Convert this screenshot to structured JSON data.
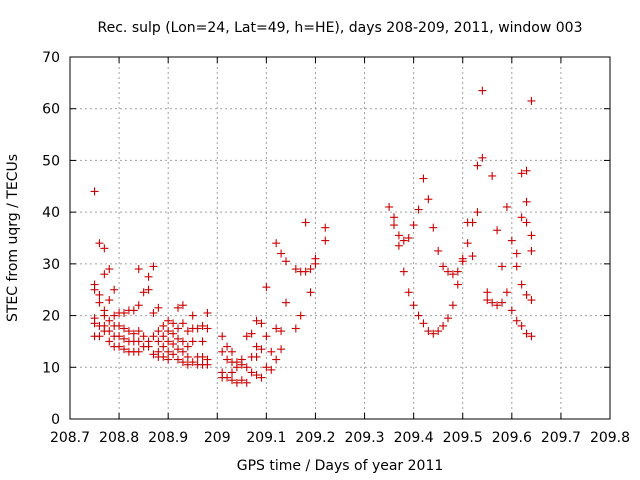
{
  "chart_data": {
    "type": "scatter",
    "title": "Rec. sulp (Lon=24, Lat=49, h=HE), days 208-209, 2011, window 003",
    "xlabel": "GPS time / Days of year 2011",
    "ylabel": "STEC from uqrg / TECUs",
    "xlim": [
      208.7,
      209.8
    ],
    "ylim": [
      0,
      70
    ],
    "xticks": [
      "208.7",
      "208.8",
      "208.9",
      "209",
      "209.1",
      "209.2",
      "209.3",
      "209.4",
      "209.5",
      "209.6",
      "209.7",
      "209.8"
    ],
    "xtick_values": [
      208.7,
      208.8,
      208.9,
      209.0,
      209.1,
      209.2,
      209.3,
      209.4,
      209.5,
      209.6,
      209.7,
      209.8
    ],
    "yticks": [
      "0",
      "10",
      "20",
      "30",
      "40",
      "50",
      "60",
      "70"
    ],
    "ytick_values": [
      0,
      10,
      20,
      30,
      40,
      50,
      60,
      70
    ],
    "grid": true,
    "marker": "+",
    "marker_color": "#cc0000",
    "series": [
      {
        "points": [
          [
            208.75,
            44.0
          ],
          [
            208.75,
            26.0
          ],
          [
            208.75,
            25.0
          ],
          [
            208.75,
            19.5
          ],
          [
            208.75,
            18.5
          ],
          [
            208.75,
            16.0
          ],
          [
            208.76,
            34.0
          ],
          [
            208.76,
            24.0
          ],
          [
            208.76,
            22.5
          ],
          [
            208.76,
            18.0
          ],
          [
            208.76,
            16.0
          ],
          [
            208.77,
            33.0
          ],
          [
            208.77,
            28.0
          ],
          [
            208.77,
            21.0
          ],
          [
            208.77,
            20.0
          ],
          [
            208.77,
            18.0
          ],
          [
            208.77,
            17.0
          ],
          [
            208.78,
            29.0
          ],
          [
            208.78,
            23.0
          ],
          [
            208.78,
            19.0
          ],
          [
            208.78,
            17.0
          ],
          [
            208.78,
            15.0
          ],
          [
            208.79,
            25.0
          ],
          [
            208.79,
            20.0
          ],
          [
            208.79,
            18.0
          ],
          [
            208.79,
            16.0
          ],
          [
            208.79,
            14.0
          ],
          [
            208.8,
            20.5
          ],
          [
            208.8,
            18.0
          ],
          [
            208.8,
            16.0
          ],
          [
            208.8,
            14.0
          ],
          [
            208.81,
            20.5
          ],
          [
            208.81,
            17.5
          ],
          [
            208.81,
            15.5
          ],
          [
            208.81,
            13.5
          ],
          [
            208.82,
            21.0
          ],
          [
            208.82,
            17.0
          ],
          [
            208.82,
            15.0
          ],
          [
            208.82,
            13.0
          ],
          [
            208.83,
            21.0
          ],
          [
            208.83,
            16.5
          ],
          [
            208.83,
            15.0
          ],
          [
            208.83,
            13.0
          ],
          [
            208.84,
            29.0
          ],
          [
            208.84,
            22.0
          ],
          [
            208.84,
            17.0
          ],
          [
            208.84,
            15.0
          ],
          [
            208.84,
            13.0
          ],
          [
            208.85,
            24.5
          ],
          [
            208.85,
            16.0
          ],
          [
            208.85,
            14.0
          ],
          [
            208.86,
            27.5
          ],
          [
            208.86,
            25.0
          ],
          [
            208.86,
            15.0
          ],
          [
            208.86,
            14.0
          ],
          [
            208.87,
            29.5
          ],
          [
            208.87,
            20.5
          ],
          [
            208.87,
            16.0
          ],
          [
            208.87,
            12.5
          ],
          [
            208.88,
            21.5
          ],
          [
            208.88,
            17.0
          ],
          [
            208.88,
            15.0
          ],
          [
            208.88,
            13.0
          ],
          [
            208.88,
            12.0
          ],
          [
            208.89,
            18.0
          ],
          [
            208.89,
            16.0
          ],
          [
            208.89,
            14.0
          ],
          [
            208.89,
            12.0
          ],
          [
            208.9,
            19.0
          ],
          [
            208.9,
            17.0
          ],
          [
            208.9,
            15.0
          ],
          [
            208.9,
            13.0
          ],
          [
            208.9,
            11.5
          ],
          [
            208.91,
            18.5
          ],
          [
            208.91,
            16.5
          ],
          [
            208.91,
            14.5
          ],
          [
            208.91,
            12.5
          ],
          [
            208.92,
            21.5
          ],
          [
            208.92,
            17.5
          ],
          [
            208.92,
            15.5
          ],
          [
            208.92,
            13.5
          ],
          [
            208.92,
            11.5
          ],
          [
            208.93,
            22.0
          ],
          [
            208.93,
            18.5
          ],
          [
            208.93,
            15.0
          ],
          [
            208.93,
            13.0
          ],
          [
            208.93,
            11.0
          ],
          [
            208.94,
            17.0
          ],
          [
            208.94,
            14.0
          ],
          [
            208.94,
            12.0
          ],
          [
            208.94,
            10.5
          ],
          [
            208.95,
            20.0
          ],
          [
            208.95,
            17.5
          ],
          [
            208.95,
            15.0
          ],
          [
            208.95,
            11.0
          ],
          [
            208.96,
            17.5
          ],
          [
            208.96,
            12.0
          ],
          [
            208.96,
            10.5
          ],
          [
            208.97,
            18.0
          ],
          [
            208.97,
            15.0
          ],
          [
            208.97,
            12.0
          ],
          [
            208.97,
            10.5
          ],
          [
            208.98,
            20.5
          ],
          [
            208.98,
            17.5
          ],
          [
            208.98,
            11.5
          ],
          [
            208.98,
            10.5
          ],
          [
            209.01,
            16.0
          ],
          [
            209.01,
            13.0
          ],
          [
            209.01,
            9.0
          ],
          [
            209.01,
            8.0
          ],
          [
            209.02,
            14.0
          ],
          [
            209.02,
            11.5
          ],
          [
            209.02,
            8.0
          ],
          [
            209.03,
            13.0
          ],
          [
            209.03,
            11.0
          ],
          [
            209.03,
            9.0
          ],
          [
            209.03,
            7.5
          ],
          [
            209.04,
            11.0
          ],
          [
            209.04,
            10.0
          ],
          [
            209.04,
            7.0
          ],
          [
            209.05,
            11.5
          ],
          [
            209.05,
            10.5
          ],
          [
            209.05,
            7.5
          ],
          [
            209.06,
            16.0
          ],
          [
            209.06,
            10.0
          ],
          [
            209.06,
            7.0
          ],
          [
            209.07,
            16.5
          ],
          [
            209.07,
            12.0
          ],
          [
            209.07,
            9.0
          ],
          [
            209.08,
            19.0
          ],
          [
            209.08,
            14.0
          ],
          [
            209.08,
            12.0
          ],
          [
            209.08,
            8.5
          ],
          [
            209.09,
            18.5
          ],
          [
            209.09,
            13.5
          ],
          [
            209.09,
            8.0
          ],
          [
            209.1,
            25.5
          ],
          [
            209.1,
            16.0
          ],
          [
            209.1,
            10.0
          ],
          [
            209.11,
            13.0
          ],
          [
            209.11,
            9.5
          ],
          [
            209.12,
            34.0
          ],
          [
            209.12,
            17.5
          ],
          [
            209.12,
            11.5
          ],
          [
            209.13,
            32.0
          ],
          [
            209.13,
            17.0
          ],
          [
            209.13,
            13.5
          ],
          [
            209.14,
            30.5
          ],
          [
            209.14,
            22.5
          ],
          [
            209.16,
            29.0
          ],
          [
            209.16,
            17.5
          ],
          [
            209.17,
            28.5
          ],
          [
            209.17,
            20.0
          ],
          [
            209.18,
            38.0
          ],
          [
            209.18,
            28.5
          ],
          [
            209.19,
            29.0
          ],
          [
            209.19,
            24.5
          ],
          [
            209.2,
            31.0
          ],
          [
            209.2,
            30.0
          ],
          [
            209.22,
            37.0
          ],
          [
            209.22,
            34.5
          ],
          [
            209.35,
            41.0
          ],
          [
            209.36,
            39.0
          ],
          [
            209.36,
            37.5
          ],
          [
            209.37,
            35.5
          ],
          [
            209.37,
            33.5
          ],
          [
            209.38,
            34.5
          ],
          [
            209.38,
            28.5
          ],
          [
            209.39,
            35.0
          ],
          [
            209.39,
            24.5
          ],
          [
            209.4,
            37.5
          ],
          [
            209.4,
            22.0
          ],
          [
            209.41,
            40.5
          ],
          [
            209.41,
            20.0
          ],
          [
            209.42,
            46.5
          ],
          [
            209.42,
            18.5
          ],
          [
            209.43,
            42.5
          ],
          [
            209.43,
            17.0
          ],
          [
            209.44,
            37.0
          ],
          [
            209.44,
            16.5
          ],
          [
            209.45,
            32.5
          ],
          [
            209.45,
            17.0
          ],
          [
            209.46,
            29.5
          ],
          [
            209.46,
            18.0
          ],
          [
            209.47,
            28.5
          ],
          [
            209.47,
            19.5
          ],
          [
            209.48,
            28.0
          ],
          [
            209.48,
            22.0
          ],
          [
            209.49,
            28.5
          ],
          [
            209.49,
            26.0
          ],
          [
            209.5,
            30.5
          ],
          [
            209.5,
            31.0
          ],
          [
            209.51,
            38.0
          ],
          [
            209.51,
            34.0
          ],
          [
            209.52,
            38.0
          ],
          [
            209.52,
            31.5
          ],
          [
            209.53,
            40.0
          ],
          [
            209.53,
            49.0
          ],
          [
            209.54,
            50.5
          ],
          [
            209.54,
            63.5
          ],
          [
            209.55,
            24.5
          ],
          [
            209.55,
            23.0
          ],
          [
            209.56,
            47.0
          ],
          [
            209.56,
            22.5
          ],
          [
            209.57,
            36.5
          ],
          [
            209.57,
            22.0
          ],
          [
            209.58,
            29.5
          ],
          [
            209.58,
            22.5
          ],
          [
            209.59,
            41.0
          ],
          [
            209.59,
            24.5
          ],
          [
            209.6,
            34.5
          ],
          [
            209.6,
            21.0
          ],
          [
            209.61,
            32.0
          ],
          [
            209.61,
            29.5
          ],
          [
            209.61,
            19.0
          ],
          [
            209.62,
            47.5
          ],
          [
            209.62,
            39.0
          ],
          [
            209.62,
            26.0
          ],
          [
            209.62,
            18.0
          ],
          [
            209.63,
            48.0
          ],
          [
            209.63,
            42.0
          ],
          [
            209.63,
            38.0
          ],
          [
            209.63,
            24.0
          ],
          [
            209.63,
            16.5
          ],
          [
            209.64,
            61.5
          ],
          [
            209.64,
            35.5
          ],
          [
            209.64,
            32.5
          ],
          [
            209.64,
            23.0
          ],
          [
            209.64,
            16.0
          ]
        ]
      }
    ]
  }
}
